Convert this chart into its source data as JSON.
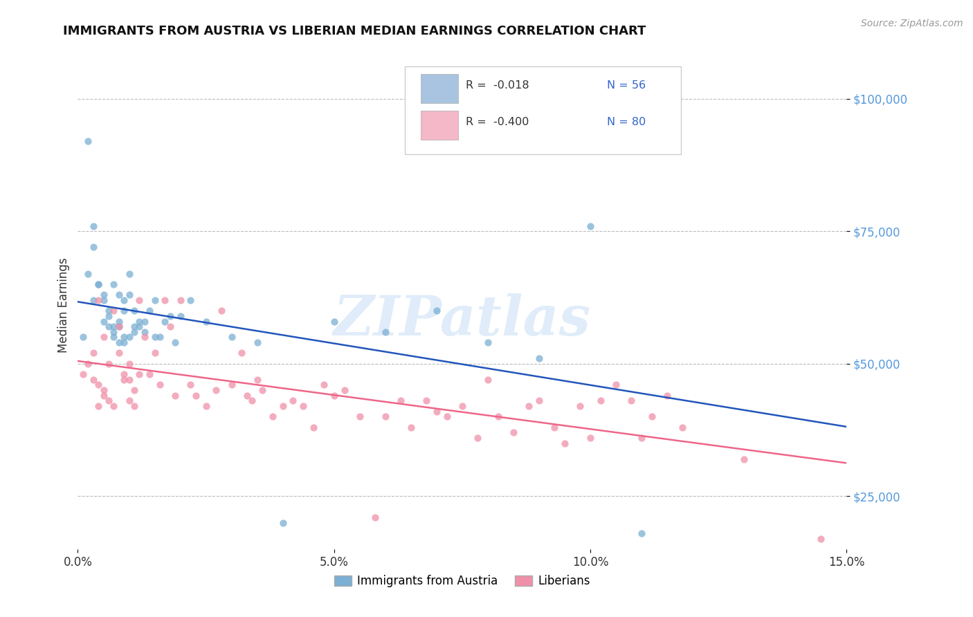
{
  "title": "IMMIGRANTS FROM AUSTRIA VS LIBERIAN MEDIAN EARNINGS CORRELATION CHART",
  "source_text": "Source: ZipAtlas.com",
  "ylabel": "Median Earnings",
  "xlim": [
    0.0,
    0.15
  ],
  "ylim": [
    15000,
    107000
  ],
  "yticks": [
    25000,
    50000,
    75000,
    100000
  ],
  "ytick_labels": [
    "$25,000",
    "$50,000",
    "$75,000",
    "$100,000"
  ],
  "xticks": [
    0.0,
    0.05,
    0.1,
    0.15
  ],
  "xtick_labels": [
    "0.0%",
    "5.0%",
    "10.0%",
    "15.0%"
  ],
  "legend_r_values": [
    "R =  -0.018",
    "R =  -0.400"
  ],
  "legend_n_values": [
    "N = 56",
    "N = 80"
  ],
  "legend_colors": [
    "#a8c4e0",
    "#f4b8c8"
  ],
  "legend_bottom_labels": [
    "Immigrants from Austria",
    "Liberians"
  ],
  "austria_color": "#7bafd4",
  "liberia_color": "#f090a8",
  "austria_trend_color": "#2255bb",
  "liberia_trend_color": "#ee6688",
  "watermark": "ZIPatlas",
  "austria_scatter": {
    "x": [
      0.001,
      0.002,
      0.002,
      0.003,
      0.003,
      0.003,
      0.004,
      0.004,
      0.005,
      0.005,
      0.005,
      0.006,
      0.006,
      0.006,
      0.007,
      0.007,
      0.007,
      0.007,
      0.008,
      0.008,
      0.008,
      0.008,
      0.009,
      0.009,
      0.009,
      0.009,
      0.01,
      0.01,
      0.01,
      0.011,
      0.011,
      0.011,
      0.012,
      0.012,
      0.013,
      0.013,
      0.014,
      0.015,
      0.015,
      0.016,
      0.017,
      0.018,
      0.019,
      0.02,
      0.022,
      0.025,
      0.03,
      0.035,
      0.04,
      0.05,
      0.06,
      0.07,
      0.08,
      0.09,
      0.1,
      0.11
    ],
    "y": [
      55000,
      92000,
      67000,
      62000,
      72000,
      76000,
      65000,
      65000,
      58000,
      63000,
      62000,
      57000,
      60000,
      59000,
      57000,
      55000,
      56000,
      65000,
      58000,
      54000,
      63000,
      57000,
      55000,
      54000,
      62000,
      60000,
      63000,
      67000,
      55000,
      60000,
      57000,
      56000,
      58000,
      57000,
      56000,
      58000,
      60000,
      55000,
      62000,
      55000,
      58000,
      59000,
      54000,
      59000,
      62000,
      58000,
      55000,
      54000,
      20000,
      58000,
      56000,
      60000,
      54000,
      51000,
      76000,
      18000
    ]
  },
  "liberia_scatter": {
    "x": [
      0.001,
      0.002,
      0.003,
      0.003,
      0.004,
      0.004,
      0.004,
      0.005,
      0.005,
      0.005,
      0.006,
      0.006,
      0.007,
      0.007,
      0.008,
      0.008,
      0.009,
      0.009,
      0.01,
      0.01,
      0.01,
      0.011,
      0.011,
      0.012,
      0.012,
      0.013,
      0.014,
      0.015,
      0.016,
      0.017,
      0.018,
      0.019,
      0.02,
      0.022,
      0.023,
      0.025,
      0.027,
      0.028,
      0.03,
      0.032,
      0.033,
      0.034,
      0.035,
      0.036,
      0.038,
      0.04,
      0.042,
      0.044,
      0.046,
      0.048,
      0.05,
      0.052,
      0.055,
      0.058,
      0.06,
      0.063,
      0.065,
      0.068,
      0.07,
      0.072,
      0.075,
      0.078,
      0.08,
      0.082,
      0.085,
      0.088,
      0.09,
      0.093,
      0.095,
      0.098,
      0.1,
      0.102,
      0.105,
      0.108,
      0.11,
      0.112,
      0.115,
      0.118,
      0.13,
      0.145
    ],
    "y": [
      48000,
      50000,
      47000,
      52000,
      62000,
      46000,
      42000,
      55000,
      44000,
      45000,
      50000,
      43000,
      42000,
      60000,
      52000,
      57000,
      48000,
      47000,
      43000,
      47000,
      50000,
      42000,
      45000,
      48000,
      62000,
      55000,
      48000,
      52000,
      46000,
      62000,
      57000,
      44000,
      62000,
      46000,
      44000,
      42000,
      45000,
      60000,
      46000,
      52000,
      44000,
      43000,
      47000,
      45000,
      40000,
      42000,
      43000,
      42000,
      38000,
      46000,
      44000,
      45000,
      40000,
      21000,
      40000,
      43000,
      38000,
      43000,
      41000,
      40000,
      42000,
      36000,
      47000,
      40000,
      37000,
      42000,
      43000,
      38000,
      35000,
      42000,
      36000,
      43000,
      46000,
      43000,
      36000,
      40000,
      44000,
      38000,
      32000,
      17000
    ]
  }
}
